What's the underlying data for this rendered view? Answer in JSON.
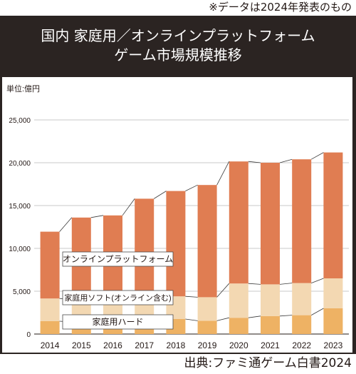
{
  "note": "※データは2024年発表のもの",
  "source": "出典:ファミ通ゲーム白書2024",
  "colors": {
    "panel": "#2b2422",
    "online": "#e07d52",
    "soft": "#f3d8b2",
    "hard": "#eeb264"
  },
  "chart_data": {
    "type": "bar",
    "stacked": true,
    "title": "国内 家庭用／オンラインプラットフォーム",
    "subtitle": "ゲーム市場規模推移",
    "ylabel": "単位:億円",
    "ylim": [
      0,
      25000
    ],
    "yticks": [
      "0",
      "5,000",
      "10,000",
      "15,000",
      "20,000",
      "25,000"
    ],
    "grid": true,
    "categories": [
      "2014",
      "2015",
      "2016",
      "2017",
      "2018",
      "2019",
      "2020",
      "2021",
      "2022",
      "2023"
    ],
    "series": [
      {
        "name": "家庭用ハード",
        "values": [
          1500,
          1400,
          1300,
          1700,
          1750,
          1550,
          1900,
          2100,
          2200,
          3000
        ]
      },
      {
        "name": "家庭用ソフト(オンライン含む)",
        "values": [
          2650,
          2650,
          2600,
          2650,
          2650,
          2750,
          4000,
          3700,
          3750,
          3500
        ]
      },
      {
        "name": "オンラインプラットフォーム",
        "values": [
          7800,
          9550,
          9950,
          11450,
          12300,
          13100,
          14250,
          14200,
          14450,
          14700
        ]
      }
    ]
  }
}
